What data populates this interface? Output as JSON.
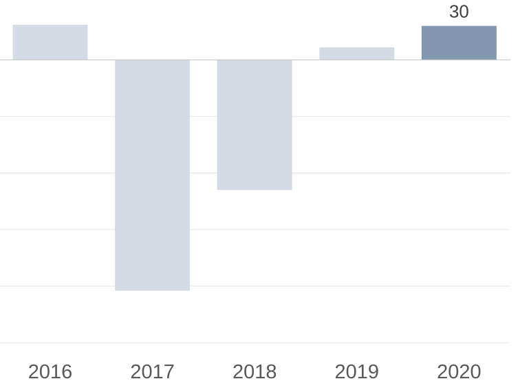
{
  "chart_data": {
    "type": "bar",
    "title": "",
    "xlabel": "",
    "ylabel": "",
    "categories": [
      "2016",
      "2017",
      "2018",
      "2019",
      "2020"
    ],
    "values": [
      31,
      -204,
      -115,
      11,
      30
    ],
    "ylim": [
      -250,
      50
    ],
    "grid": true,
    "legend": "none",
    "data_labels": [
      {
        "category": "2020",
        "text": "30"
      }
    ],
    "colors": {
      "bar": "#d5dbe5",
      "highlight": "#8497b0",
      "gridline": "#e6e6e6",
      "zero_line": "#bfbfbf"
    },
    "highlight_category": "2020"
  }
}
